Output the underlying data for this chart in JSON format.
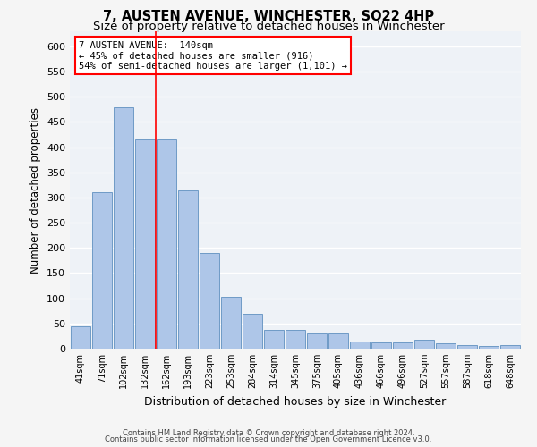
{
  "title1": "7, AUSTEN AVENUE, WINCHESTER, SO22 4HP",
  "title2": "Size of property relative to detached houses in Winchester",
  "xlabel": "Distribution of detached houses by size in Winchester",
  "ylabel": "Number of detached properties",
  "categories": [
    "41sqm",
    "71sqm",
    "102sqm",
    "132sqm",
    "162sqm",
    "193sqm",
    "223sqm",
    "253sqm",
    "284sqm",
    "314sqm",
    "345sqm",
    "375sqm",
    "405sqm",
    "436sqm",
    "466sqm",
    "496sqm",
    "527sqm",
    "557sqm",
    "587sqm",
    "618sqm",
    "648sqm"
  ],
  "values": [
    45,
    311,
    480,
    415,
    415,
    314,
    190,
    103,
    70,
    38,
    38,
    30,
    30,
    14,
    13,
    13,
    17,
    10,
    7,
    5,
    7
  ],
  "bar_color": "#aec6e8",
  "bar_edge_color": "#6090c0",
  "annotation_line1": "7 AUSTEN AVENUE:  140sqm",
  "annotation_line2": "← 45% of detached houses are smaller (916)",
  "annotation_line3": "54% of semi-detached houses are larger (1,101) →",
  "footer1": "Contains HM Land Registry data © Crown copyright and database right 2024.",
  "footer2": "Contains public sector information licensed under the Open Government Licence v3.0.",
  "ylim": [
    0,
    630
  ],
  "yticks": [
    0,
    50,
    100,
    150,
    200,
    250,
    300,
    350,
    400,
    450,
    500,
    550,
    600
  ],
  "background_color": "#eef2f7",
  "grid_color": "#ffffff",
  "title1_fontsize": 10.5,
  "title2_fontsize": 9.5
}
